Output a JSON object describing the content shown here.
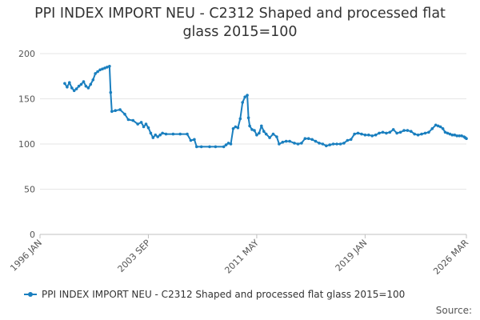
{
  "chart_data": {
    "type": "line",
    "title": "PPI INDEX IMPORT NEU - C2312 Shaped and processed flat glass 2015=100",
    "title_lines": [
      "PPI INDEX IMPORT NEU - C2312 Shaped and processed flat",
      "glass 2015=100"
    ],
    "xlabel": "",
    "ylabel": "",
    "x_ticks": [
      "1996 JAN",
      "2003 SEP",
      "2011 MAY",
      "2019 JAN",
      "2026 MAR"
    ],
    "y_ticks": [
      0,
      50,
      100,
      150,
      200
    ],
    "xlim": [
      "1996-01",
      "2026-03"
    ],
    "ylim": [
      0,
      200
    ],
    "grid": "horizontal",
    "legend_position": "bottom",
    "color": "#1a7fbf",
    "series": [
      {
        "name": "PPI INDEX IMPORT NEU - C2312 Shaped and processed flat glass 2015=100",
        "points": [
          [
            "1997-10",
            167
          ],
          [
            "1997-12",
            163
          ],
          [
            "1998-02",
            168
          ],
          [
            "1998-04",
            162
          ],
          [
            "1998-06",
            159
          ],
          [
            "1998-08",
            161
          ],
          [
            "1998-10",
            164
          ],
          [
            "1998-12",
            166
          ],
          [
            "1999-02",
            169
          ],
          [
            "1999-04",
            164
          ],
          [
            "1999-06",
            162
          ],
          [
            "1999-08",
            166
          ],
          [
            "1999-10",
            171
          ],
          [
            "1999-12",
            178
          ],
          [
            "2000-02",
            180
          ],
          [
            "2000-04",
            182
          ],
          [
            "2000-06",
            183
          ],
          [
            "2000-08",
            184
          ],
          [
            "2000-10",
            185
          ],
          [
            "2000-12",
            186
          ],
          [
            "2001-01",
            157
          ],
          [
            "2001-02",
            136
          ],
          [
            "2001-05",
            137
          ],
          [
            "2001-09",
            138
          ],
          [
            "2002-01",
            133
          ],
          [
            "2002-04",
            127
          ],
          [
            "2002-08",
            126
          ],
          [
            "2002-12",
            122
          ],
          [
            "2003-03",
            124
          ],
          [
            "2003-05",
            119
          ],
          [
            "2003-07",
            122
          ],
          [
            "2003-09",
            118
          ],
          [
            "2003-11",
            112
          ],
          [
            "2004-01",
            107
          ],
          [
            "2004-03",
            110
          ],
          [
            "2004-05",
            108
          ],
          [
            "2004-07",
            110
          ],
          [
            "2004-09",
            112
          ],
          [
            "2004-12",
            111
          ],
          [
            "2005-06",
            111
          ],
          [
            "2005-12",
            111
          ],
          [
            "2006-06",
            111
          ],
          [
            "2006-09",
            104
          ],
          [
            "2006-12",
            105
          ],
          [
            "2007-02",
            97
          ],
          [
            "2007-06",
            97
          ],
          [
            "2008-01",
            97
          ],
          [
            "2008-06",
            97
          ],
          [
            "2009-01",
            97
          ],
          [
            "2009-03",
            99
          ],
          [
            "2009-05",
            101
          ],
          [
            "2009-07",
            100
          ],
          [
            "2009-09",
            117
          ],
          [
            "2009-11",
            119
          ],
          [
            "2010-01",
            118
          ],
          [
            "2010-03",
            128
          ],
          [
            "2010-05",
            146
          ],
          [
            "2010-07",
            152
          ],
          [
            "2010-09",
            154
          ],
          [
            "2010-10",
            129
          ],
          [
            "2010-11",
            120
          ],
          [
            "2011-01",
            116
          ],
          [
            "2011-03",
            115
          ],
          [
            "2011-05",
            110
          ],
          [
            "2011-07",
            112
          ],
          [
            "2011-09",
            120
          ],
          [
            "2011-11",
            114
          ],
          [
            "2012-01",
            111
          ],
          [
            "2012-04",
            107
          ],
          [
            "2012-07",
            111
          ],
          [
            "2012-10",
            108
          ],
          [
            "2012-12",
            100
          ],
          [
            "2013-03",
            102
          ],
          [
            "2013-06",
            103
          ],
          [
            "2013-09",
            103
          ],
          [
            "2014-01",
            101
          ],
          [
            "2014-04",
            100
          ],
          [
            "2014-07",
            101
          ],
          [
            "2014-10",
            106
          ],
          [
            "2015-01",
            106
          ],
          [
            "2015-04",
            105
          ],
          [
            "2015-07",
            103
          ],
          [
            "2015-10",
            101
          ],
          [
            "2016-01",
            100
          ],
          [
            "2016-04",
            98
          ],
          [
            "2016-07",
            99
          ],
          [
            "2016-10",
            100
          ],
          [
            "2017-01",
            100
          ],
          [
            "2017-04",
            100
          ],
          [
            "2017-07",
            101
          ],
          [
            "2017-10",
            104
          ],
          [
            "2018-01",
            105
          ],
          [
            "2018-04",
            111
          ],
          [
            "2018-07",
            112
          ],
          [
            "2018-10",
            111
          ],
          [
            "2019-01",
            110
          ],
          [
            "2019-04",
            110
          ],
          [
            "2019-07",
            109
          ],
          [
            "2019-10",
            110
          ],
          [
            "2020-01",
            112
          ],
          [
            "2020-04",
            113
          ],
          [
            "2020-07",
            112
          ],
          [
            "2020-10",
            113
          ],
          [
            "2021-01",
            116
          ],
          [
            "2021-04",
            112
          ],
          [
            "2021-07",
            113
          ],
          [
            "2021-10",
            115
          ],
          [
            "2022-01",
            115
          ],
          [
            "2022-04",
            114
          ],
          [
            "2022-07",
            111
          ],
          [
            "2022-10",
            110
          ],
          [
            "2023-01",
            111
          ],
          [
            "2023-04",
            112
          ],
          [
            "2023-07",
            113
          ],
          [
            "2023-10",
            117
          ],
          [
            "2024-01",
            121
          ],
          [
            "2024-03",
            120
          ],
          [
            "2024-05",
            119
          ],
          [
            "2024-07",
            117
          ],
          [
            "2024-09",
            113
          ],
          [
            "2024-11",
            112
          ],
          [
            "2025-01",
            111
          ],
          [
            "2025-03",
            110
          ],
          [
            "2025-05",
            110
          ],
          [
            "2025-07",
            109
          ],
          [
            "2025-09",
            109
          ],
          [
            "2025-11",
            109
          ],
          [
            "2026-01",
            108
          ],
          [
            "2026-02",
            107
          ],
          [
            "2026-03",
            106
          ]
        ]
      }
    ],
    "source_label": "Source:"
  }
}
